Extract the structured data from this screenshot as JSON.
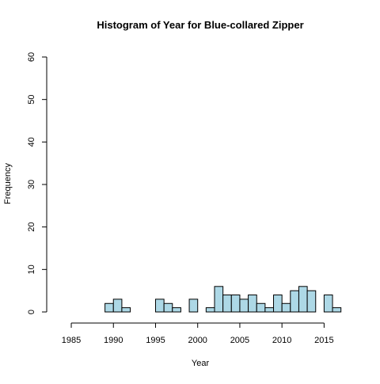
{
  "colors": {
    "bar_fill": "#add8e6",
    "bar_stroke": "#000000",
    "axis": "#000000",
    "background": "#ffffff"
  },
  "chart_data": {
    "type": "bar",
    "title": "Histogram of Year for Blue-collared Zipper",
    "xlabel": "Year",
    "ylabel": "Frequency",
    "bin_width": 1,
    "x_ticks": [
      1985,
      1990,
      1995,
      2000,
      2005,
      2010,
      2015
    ],
    "y_ticks": [
      0,
      10,
      20,
      30,
      40,
      50,
      60
    ],
    "xlim": [
      1983.4,
      2017.5
    ],
    "ylim": [
      0,
      60
    ],
    "grid": false,
    "legend": "none",
    "bins": [
      {
        "start": 1983,
        "end": 1984,
        "count": 0
      },
      {
        "start": 1984,
        "end": 1985,
        "count": 0
      },
      {
        "start": 1985,
        "end": 1986,
        "count": 0
      },
      {
        "start": 1986,
        "end": 1987,
        "count": 0
      },
      {
        "start": 1987,
        "end": 1988,
        "count": 0
      },
      {
        "start": 1988,
        "end": 1989,
        "count": 0
      },
      {
        "start": 1989,
        "end": 1990,
        "count": 2
      },
      {
        "start": 1990,
        "end": 1991,
        "count": 3
      },
      {
        "start": 1991,
        "end": 1992,
        "count": 1
      },
      {
        "start": 1992,
        "end": 1993,
        "count": 0
      },
      {
        "start": 1993,
        "end": 1994,
        "count": 0
      },
      {
        "start": 1994,
        "end": 1995,
        "count": 0
      },
      {
        "start": 1995,
        "end": 1996,
        "count": 3
      },
      {
        "start": 1996,
        "end": 1997,
        "count": 2
      },
      {
        "start": 1997,
        "end": 1998,
        "count": 1
      },
      {
        "start": 1998,
        "end": 1999,
        "count": 0
      },
      {
        "start": 1999,
        "end": 2000,
        "count": 3
      },
      {
        "start": 2000,
        "end": 2001,
        "count": 0
      },
      {
        "start": 2001,
        "end": 2002,
        "count": 1
      },
      {
        "start": 2002,
        "end": 2003,
        "count": 6
      },
      {
        "start": 2003,
        "end": 2004,
        "count": 4
      },
      {
        "start": 2004,
        "end": 2005,
        "count": 4
      },
      {
        "start": 2005,
        "end": 2006,
        "count": 3
      },
      {
        "start": 2006,
        "end": 2007,
        "count": 4
      },
      {
        "start": 2007,
        "end": 2008,
        "count": 2
      },
      {
        "start": 2008,
        "end": 2009,
        "count": 1
      },
      {
        "start": 2009,
        "end": 2010,
        "count": 4
      },
      {
        "start": 2010,
        "end": 2011,
        "count": 2
      },
      {
        "start": 2011,
        "end": 2012,
        "count": 5
      },
      {
        "start": 2012,
        "end": 2013,
        "count": 6
      },
      {
        "start": 2013,
        "end": 2014,
        "count": 5
      },
      {
        "start": 2014,
        "end": 2015,
        "count": 0
      },
      {
        "start": 2015,
        "end": 2016,
        "count": 4
      },
      {
        "start": 2016,
        "end": 2017,
        "count": 1
      }
    ]
  }
}
